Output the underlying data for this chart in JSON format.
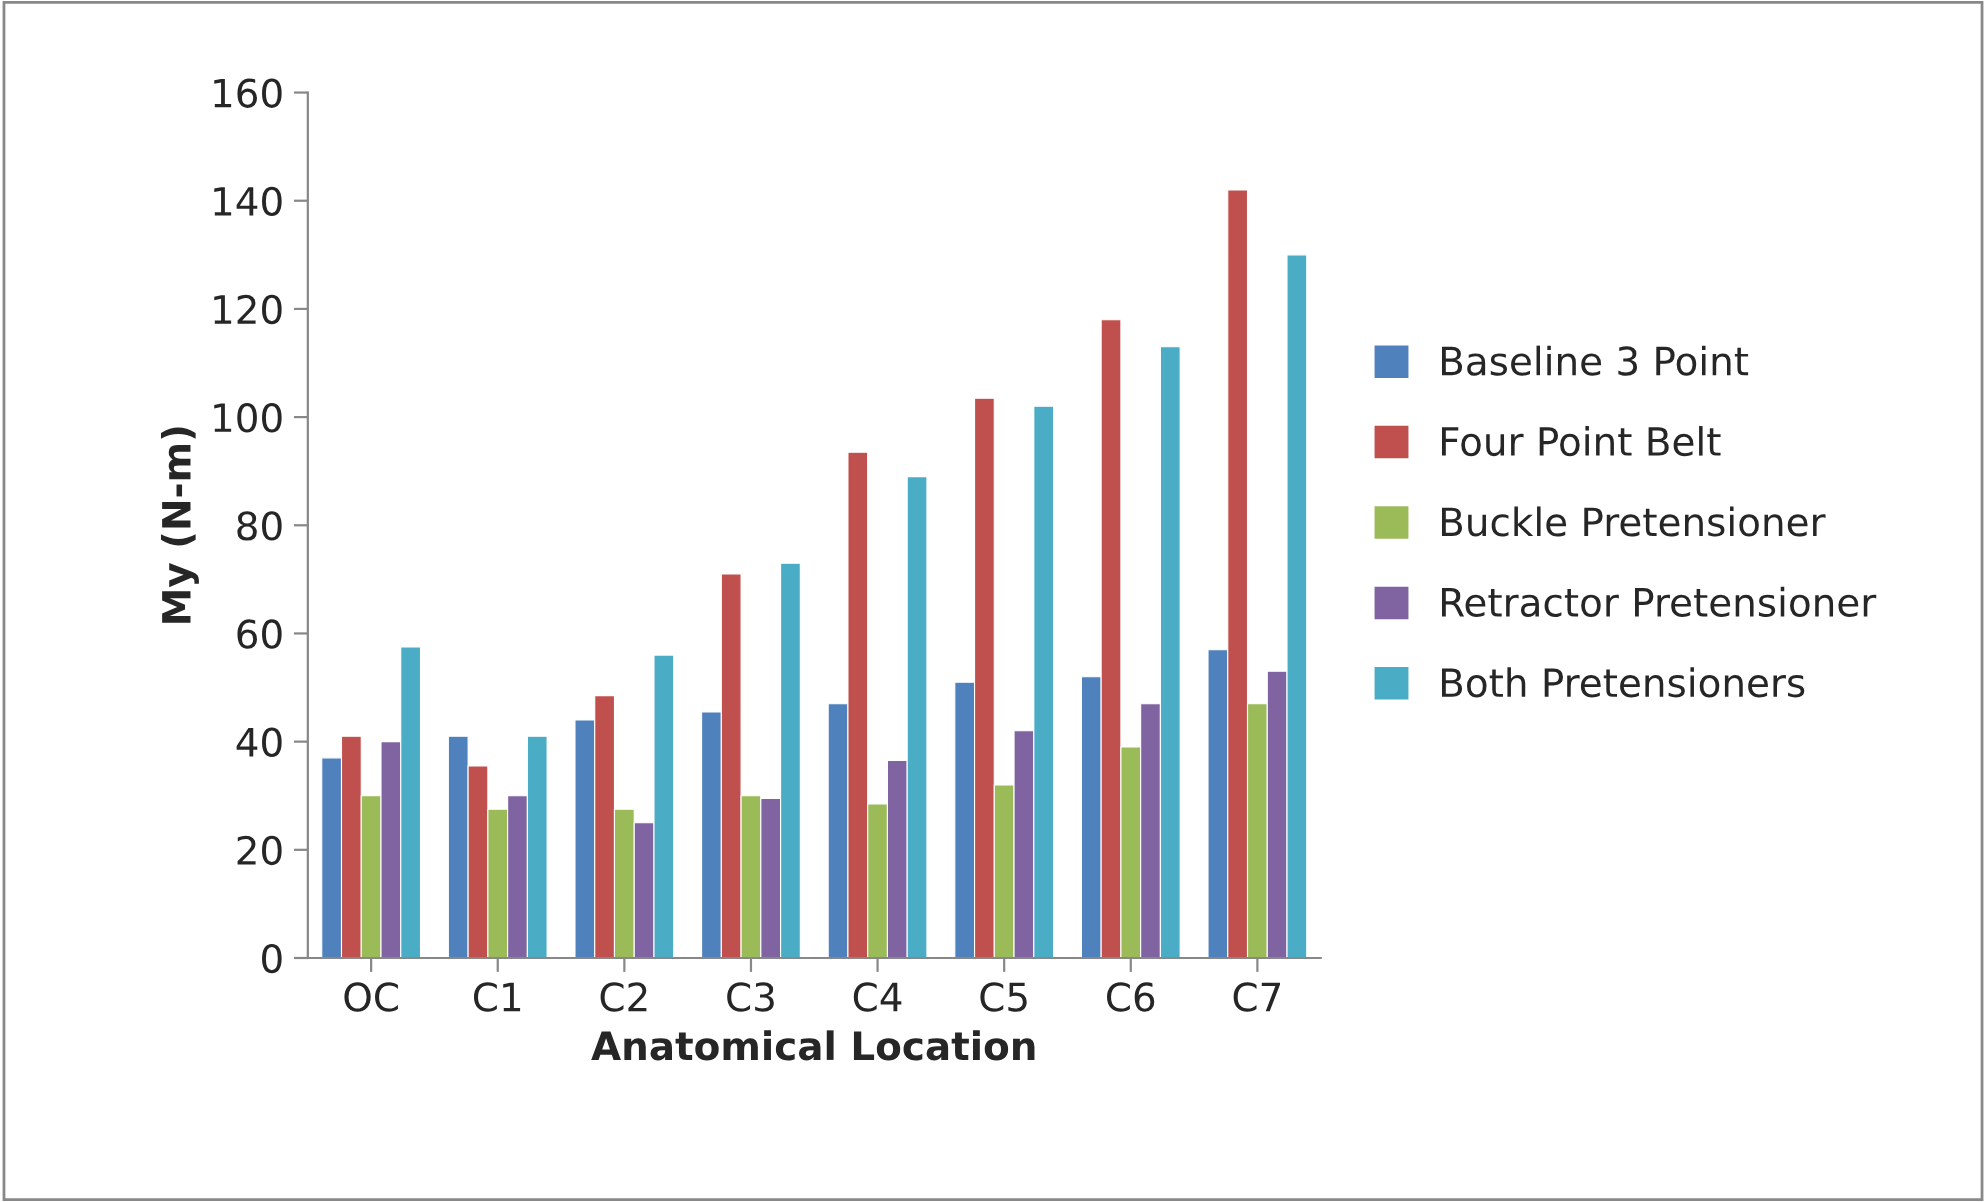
{
  "chart_data": {
    "type": "bar",
    "xlabel": "Anatomical Location",
    "ylabel": "My (N-m)",
    "categories": [
      "OC",
      "C1",
      "C2",
      "C3",
      "C4",
      "C5",
      "C6",
      "C7"
    ],
    "series": [
      {
        "name": "Baseline 3 Point",
        "color": "#4f81bd",
        "values": [
          37,
          41,
          44,
          45.5,
          47,
          51,
          52,
          57
        ]
      },
      {
        "name": "Four Point Belt",
        "color": "#c0504d",
        "values": [
          41,
          35.5,
          48.5,
          71,
          93.5,
          103.5,
          118,
          142
        ]
      },
      {
        "name": "Buckle Pretensioner",
        "color": "#9bbb59",
        "values": [
          30,
          27.5,
          27.5,
          30,
          28.5,
          32,
          39,
          47
        ]
      },
      {
        "name": "Retractor Pretensioner",
        "color": "#8064a2",
        "values": [
          40,
          30,
          25,
          29.5,
          36.5,
          42,
          47,
          53
        ]
      },
      {
        "name": "Both Pretensioners",
        "color": "#4bacc6",
        "values": [
          57.5,
          41,
          56,
          73,
          89,
          102,
          113,
          130
        ]
      }
    ],
    "ylim": [
      0,
      160
    ],
    "yticks": [
      0,
      20,
      40,
      60,
      80,
      100,
      120,
      140,
      160
    ],
    "grid": false,
    "legend": "right"
  }
}
